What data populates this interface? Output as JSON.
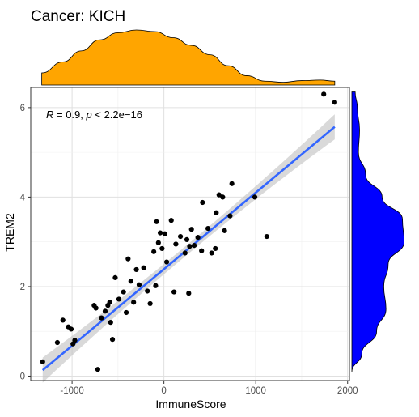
{
  "chart_data": {
    "type": "scatter",
    "title": "Cancer: KICH",
    "xlabel": "ImmuneScore",
    "ylabel": "TREM2",
    "xlim": [
      -1450,
      2020
    ],
    "ylim": [
      -0.1,
      6.45
    ],
    "xticks": [
      -1000,
      0,
      1000,
      2000
    ],
    "xtick_labels": [
      "-1000",
      "0",
      "1000",
      "2000"
    ],
    "yticks": [
      0,
      2,
      4,
      6
    ],
    "ytick_labels": [
      "0",
      "2",
      "4",
      "6"
    ],
    "grid": true,
    "annotation": {
      "r_label": "R",
      "r_text": " = 0.9, ",
      "p_label": "p",
      "p_text": " < 2.2e−16"
    },
    "regression": {
      "x_range": [
        -1320,
        1860
      ],
      "intercept": 2.39,
      "slope": 0.00171,
      "ci_halfwidth_end": 0.28,
      "ci_halfwidth_mid": 0.11,
      "line_color": "#3366ff",
      "band_color": "#c0c0c0"
    },
    "points": [
      {
        "x": -1320,
        "y": 0.32
      },
      {
        "x": -1160,
        "y": 0.75
      },
      {
        "x": -1100,
        "y": 1.25
      },
      {
        "x": -1040,
        "y": 1.1
      },
      {
        "x": -1010,
        "y": 1.05
      },
      {
        "x": -990,
        "y": 0.72
      },
      {
        "x": -970,
        "y": 0.8
      },
      {
        "x": -760,
        "y": 1.58
      },
      {
        "x": -740,
        "y": 1.52
      },
      {
        "x": -720,
        "y": 0.15
      },
      {
        "x": -680,
        "y": 1.3
      },
      {
        "x": -640,
        "y": 1.45
      },
      {
        "x": -610,
        "y": 1.58
      },
      {
        "x": -590,
        "y": 1.65
      },
      {
        "x": -580,
        "y": 1.2
      },
      {
        "x": -560,
        "y": 0.82
      },
      {
        "x": -530,
        "y": 2.2
      },
      {
        "x": -490,
        "y": 1.72
      },
      {
        "x": -440,
        "y": 1.88
      },
      {
        "x": -410,
        "y": 1.42
      },
      {
        "x": -390,
        "y": 2.62
      },
      {
        "x": -360,
        "y": 2.12
      },
      {
        "x": -330,
        "y": 1.65
      },
      {
        "x": -300,
        "y": 2.38
      },
      {
        "x": -270,
        "y": 2.04
      },
      {
        "x": -220,
        "y": 2.42
      },
      {
        "x": -180,
        "y": 1.9
      },
      {
        "x": -150,
        "y": 1.62
      },
      {
        "x": -110,
        "y": 2.78
      },
      {
        "x": -90,
        "y": 2.02
      },
      {
        "x": -80,
        "y": 3.45
      },
      {
        "x": -60,
        "y": 2.98
      },
      {
        "x": -40,
        "y": 3.2
      },
      {
        "x": -20,
        "y": 2.85
      },
      {
        "x": 10,
        "y": 3.18
      },
      {
        "x": 30,
        "y": 2.55
      },
      {
        "x": 80,
        "y": 3.48
      },
      {
        "x": 110,
        "y": 1.88
      },
      {
        "x": 130,
        "y": 2.95
      },
      {
        "x": 180,
        "y": 3.12
      },
      {
        "x": 230,
        "y": 2.75
      },
      {
        "x": 250,
        "y": 3.05
      },
      {
        "x": 270,
        "y": 1.85
      },
      {
        "x": 280,
        "y": 2.9
      },
      {
        "x": 300,
        "y": 3.28
      },
      {
        "x": 330,
        "y": 2.92
      },
      {
        "x": 370,
        "y": 3.1
      },
      {
        "x": 410,
        "y": 2.8
      },
      {
        "x": 420,
        "y": 3.88
      },
      {
        "x": 480,
        "y": 3.3
      },
      {
        "x": 520,
        "y": 2.75
      },
      {
        "x": 560,
        "y": 2.85
      },
      {
        "x": 570,
        "y": 3.65
      },
      {
        "x": 600,
        "y": 4.05
      },
      {
        "x": 640,
        "y": 4.0
      },
      {
        "x": 660,
        "y": 3.25
      },
      {
        "x": 720,
        "y": 3.58
      },
      {
        "x": 740,
        "y": 4.3
      },
      {
        "x": 990,
        "y": 4.0
      },
      {
        "x": 1120,
        "y": 3.12
      },
      {
        "x": 1740,
        "y": 6.3
      },
      {
        "x": 1860,
        "y": 6.12
      }
    ],
    "x_marginal_density": {
      "color": "#ffa500",
      "x": [
        -1330,
        -1100,
        -900,
        -700,
        -500,
        -300,
        -100,
        100,
        300,
        500,
        700,
        900,
        1100,
        1300,
        1500,
        1700,
        1860
      ],
      "density": [
        0.22,
        0.42,
        0.62,
        0.82,
        0.95,
        1.0,
        0.97,
        0.86,
        0.72,
        0.55,
        0.35,
        0.17,
        0.07,
        0.05,
        0.08,
        0.09,
        0.07
      ]
    },
    "y_marginal_density": {
      "color": "#0000ff",
      "y": [
        0.1,
        0.5,
        1.0,
        1.5,
        2.0,
        2.5,
        3.0,
        3.5,
        4.0,
        4.5,
        5.0,
        5.5,
        6.0,
        6.35
      ],
      "density": [
        0.0,
        0.18,
        0.45,
        0.62,
        0.58,
        0.66,
        0.95,
        0.92,
        0.55,
        0.25,
        0.12,
        0.14,
        0.1,
        0.06
      ]
    }
  }
}
